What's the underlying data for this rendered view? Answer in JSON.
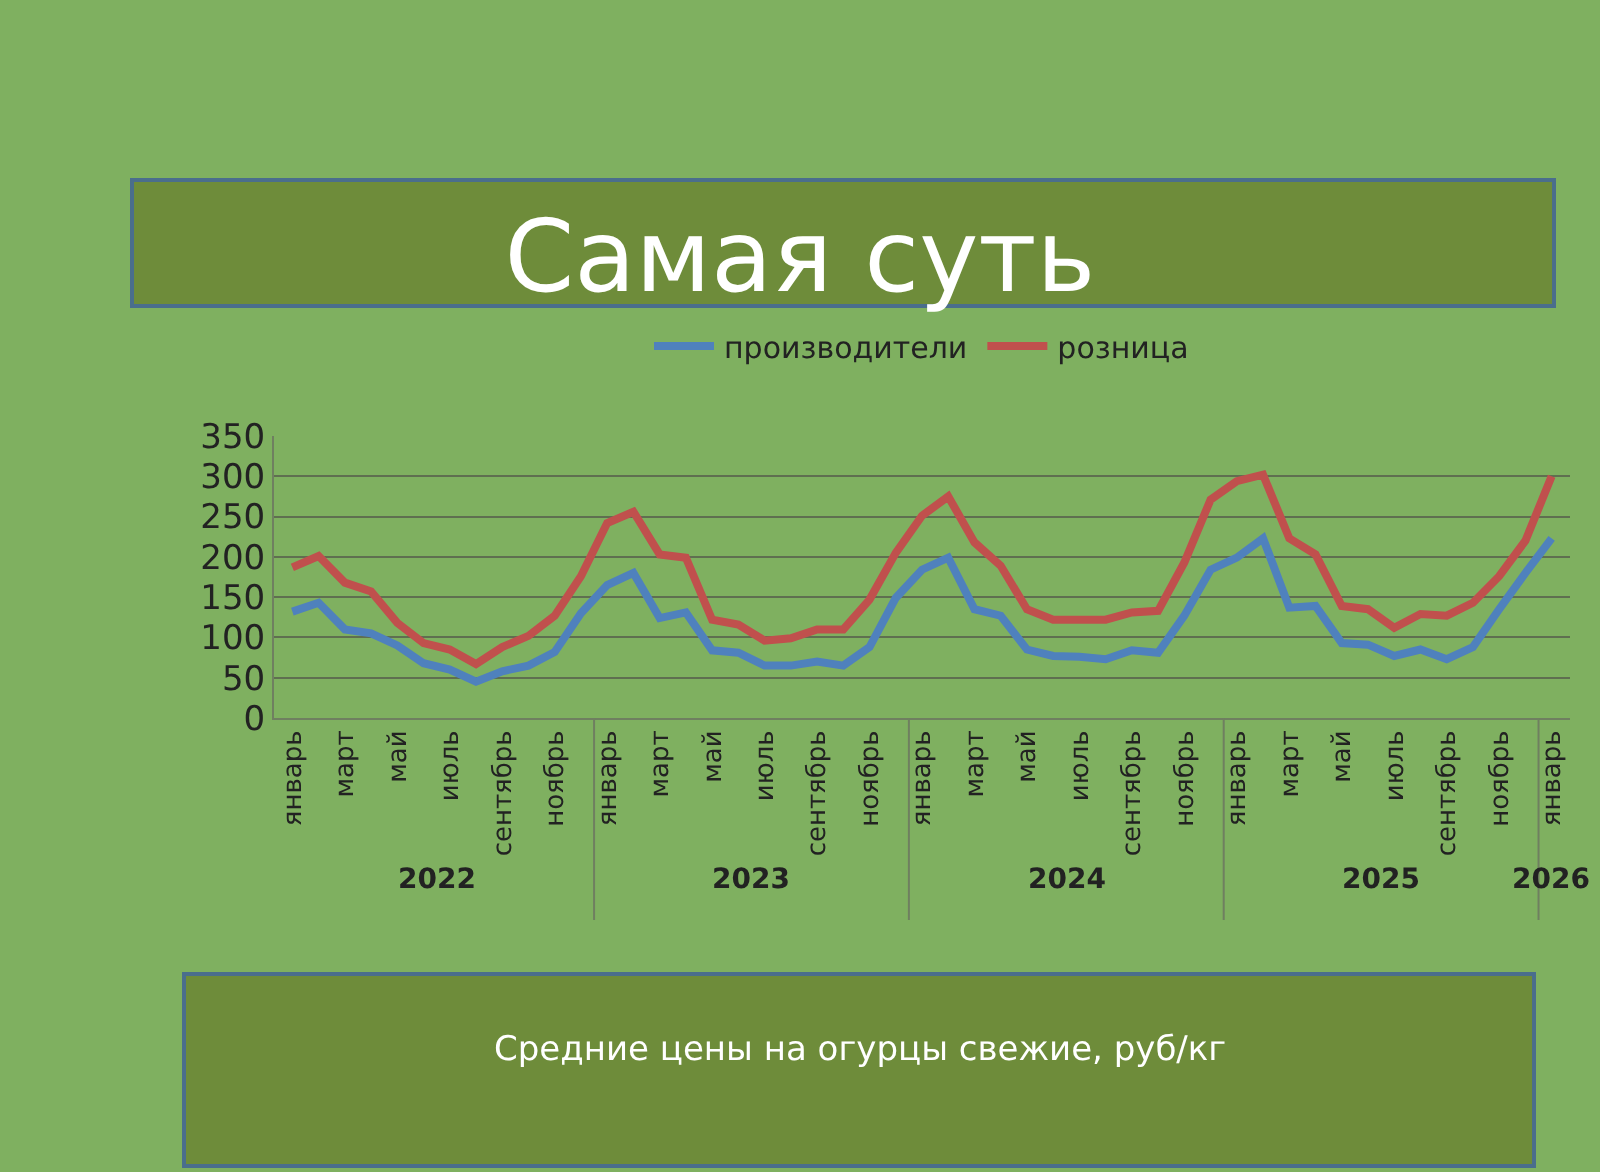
{
  "chart_data": {
    "type": "line",
    "title": "Самая суть",
    "categories": [
      "январь",
      null,
      "март",
      null,
      "май",
      null,
      "июль",
      null,
      "сентябрь",
      null,
      "ноябрь",
      null,
      "январь",
      null,
      "март",
      null,
      "май",
      null,
      "июль",
      null,
      "сентябрь",
      null,
      "ноябрь",
      null,
      "январь",
      null,
      "март",
      null,
      "май",
      null,
      "июль",
      null,
      "сентябрь",
      null,
      "ноябрь",
      null,
      "январь",
      null,
      "март",
      null,
      "май",
      null,
      "июль",
      null,
      "сентябрь",
      null,
      "ноябрь",
      null,
      "январь"
    ],
    "series": [
      {
        "name": "производители",
        "color": "#4f81bd",
        "values": [
          132,
          143,
          110,
          105,
          90,
          68,
          60,
          45,
          58,
          65,
          82,
          130,
          165,
          180,
          124,
          131,
          84,
          81,
          65,
          65,
          70,
          65,
          88,
          149,
          184,
          199,
          135,
          127,
          85,
          77,
          76,
          73,
          84,
          81,
          127,
          184,
          199,
          223,
          137,
          139,
          93,
          91,
          77,
          85,
          73,
          88,
          135,
          180,
          223
        ]
      },
      {
        "name": "розница",
        "color": "#c0504d",
        "values": [
          187,
          201,
          168,
          157,
          118,
          93,
          85,
          67,
          88,
          102,
          127,
          176,
          242,
          256,
          203,
          199,
          122,
          116,
          96,
          99,
          110,
          110,
          147,
          205,
          251,
          275,
          218,
          189,
          135,
          122,
          122,
          122,
          131,
          133,
          193,
          271,
          294,
          302,
          223,
          203,
          139,
          135,
          112,
          129,
          127,
          143,
          176,
          220,
          300
        ]
      }
    ],
    "ylim": [
      0,
      350
    ],
    "yticks": [
      0,
      50,
      100,
      150,
      200,
      250,
      300,
      350
    ],
    "grid": "y",
    "legend": "top",
    "marker": "none",
    "line_style": "solid",
    "annotations": [
      "Средние цены на огурцы свежие, руб/кг",
      "2022",
      "2023",
      "2024",
      "2025",
      "2026"
    ]
  }
}
